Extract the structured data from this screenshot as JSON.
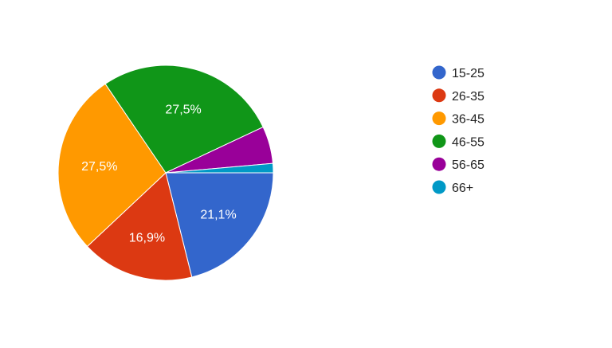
{
  "chart_data": {
    "type": "pie",
    "legend_position": "right",
    "slices": [
      {
        "label": "15-25",
        "value": 21.1,
        "display": "21,1%",
        "color": "#3366cc",
        "show_label": true
      },
      {
        "label": "26-35",
        "value": 16.9,
        "display": "16,9%",
        "color": "#dc3912",
        "show_label": true
      },
      {
        "label": "36-45",
        "value": 27.5,
        "display": "27,5%",
        "color": "#ff9900",
        "show_label": true
      },
      {
        "label": "46-55",
        "value": 27.5,
        "display": "27,5%",
        "color": "#109618",
        "show_label": true
      },
      {
        "label": "56-65",
        "value": 5.6,
        "display": "",
        "color": "#990099",
        "show_label": false
      },
      {
        "label": "66+",
        "value": 1.4,
        "display": "",
        "color": "#0099c6",
        "show_label": false
      }
    ]
  }
}
